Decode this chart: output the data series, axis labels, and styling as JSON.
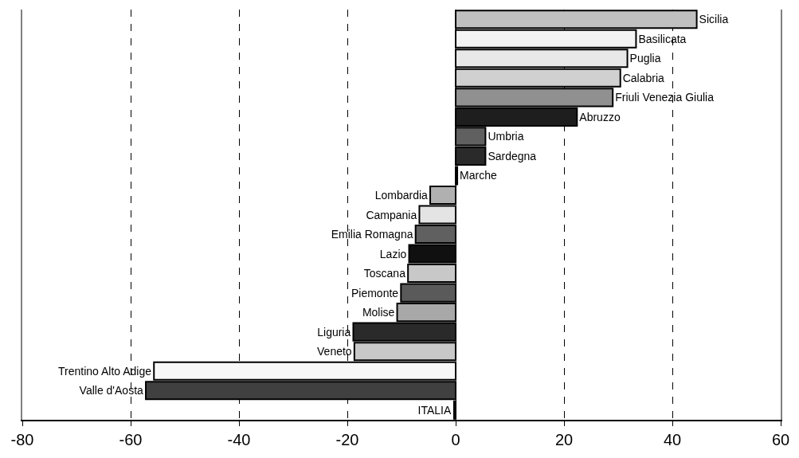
{
  "chart_data": {
    "type": "bar",
    "orientation": "horizontal",
    "categories": [
      "Sicilia",
      "Basilicata",
      "Puglia",
      "Calabria",
      "Friuli Venezia Giulia",
      "Abruzzo",
      "Umbria",
      "Sardegna",
      "Marche",
      "Lombardia",
      "Campania",
      "Emilia Romagna",
      "Lazio",
      "Toscana",
      "Piemonte",
      "Molise",
      "Liguria",
      "Veneto",
      "Trentino Alto Adige",
      "Valle d'Aosta",
      "ITALIA"
    ],
    "values": [
      44.5,
      33.3,
      31.7,
      30.4,
      29.0,
      22.4,
      5.5,
      5.5,
      0.3,
      -4.7,
      -6.7,
      -7.4,
      -8.6,
      -8.8,
      -10.1,
      -10.8,
      -18.9,
      -18.7,
      -55.7,
      -57.2,
      -0.3
    ],
    "colors": [
      "#c0c0c0",
      "#f4f4f4",
      "#e8e8e8",
      "#d0d0d0",
      "#909090",
      "#1e1e1e",
      "#606060",
      "#2a2a2a",
      "#1e1e1e",
      "#b0b0b0",
      "#e4e4e4",
      "#606060",
      "#101010",
      "#c8c8c8",
      "#5a5a5a",
      "#a8a8a8",
      "#2a2a2a",
      "#c8c8c8",
      "#f8f8f8",
      "#404040",
      "#000000"
    ],
    "xlim": [
      -80,
      60
    ],
    "xticks": [
      -80,
      -60,
      -40,
      -20,
      0,
      20,
      40,
      60
    ],
    "grid": "x",
    "tick_labels": "x"
  }
}
